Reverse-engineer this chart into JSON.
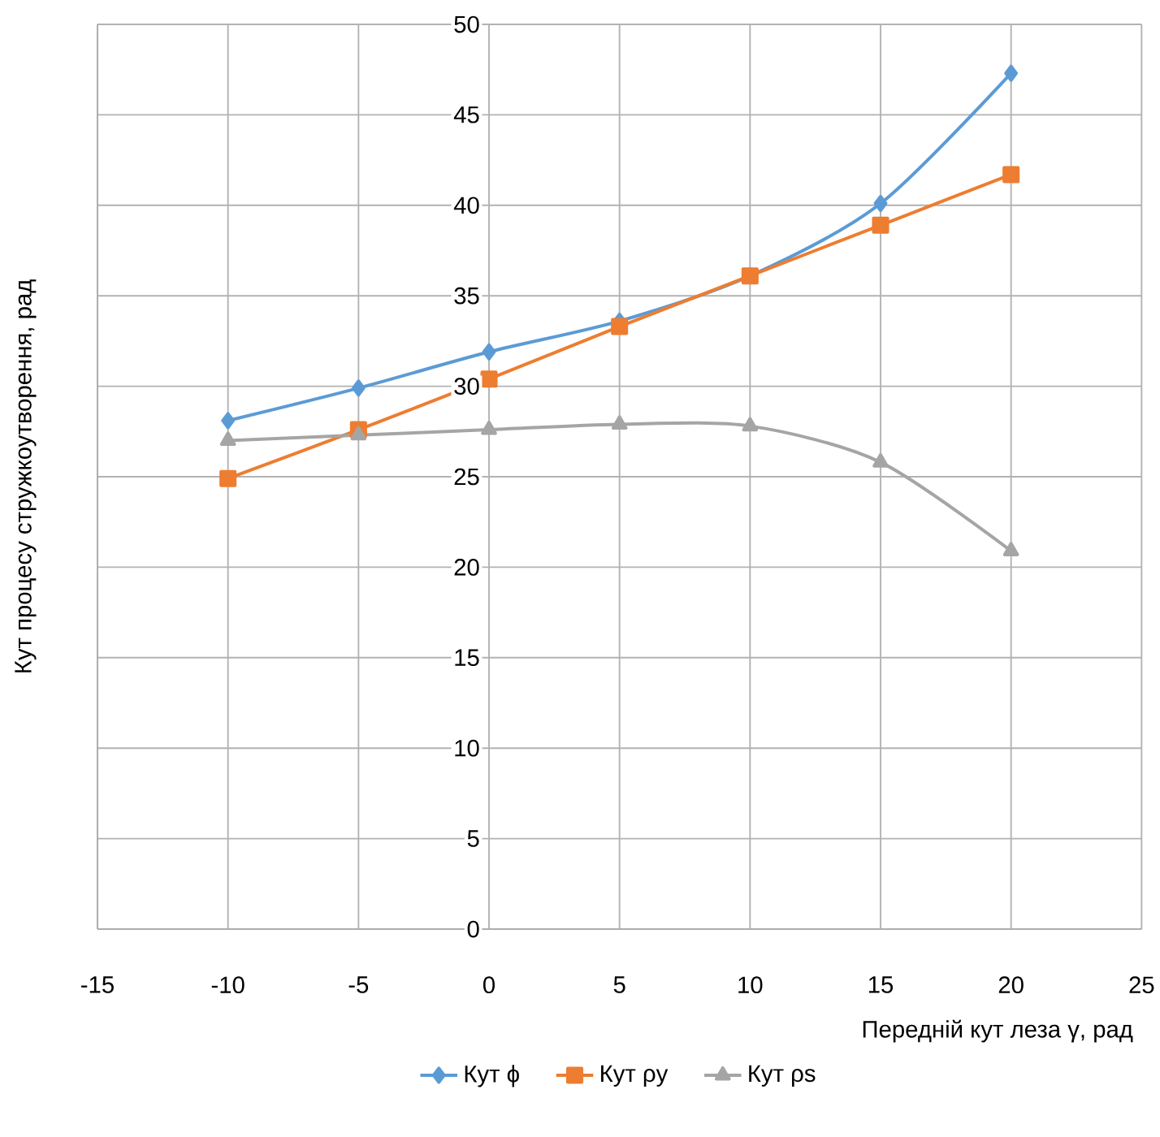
{
  "chart_data": {
    "type": "line",
    "xlabel": "Передній кут леза γ, рад",
    "ylabel": "Кут процесу стружкоутворення, рад",
    "x": [
      -10,
      -5,
      0,
      5,
      10,
      15,
      20
    ],
    "series": [
      {
        "name": "Кут ϕ",
        "color": "#5b9bd5",
        "marker": "diamond",
        "values": [
          28.1,
          29.9,
          31.9,
          33.6,
          36.1,
          40.1,
          47.3
        ]
      },
      {
        "name": "Кут ρу",
        "color": "#ed7d31",
        "marker": "square",
        "values": [
          24.9,
          27.6,
          30.4,
          33.3,
          36.1,
          38.9,
          41.7
        ]
      },
      {
        "name": "Кут ρs",
        "color": "#a5a5a5",
        "marker": "triangle",
        "values": [
          27.0,
          27.3,
          27.6,
          27.9,
          27.8,
          25.8,
          20.9
        ]
      }
    ],
    "xlim": [
      -15,
      25
    ],
    "xticks": [
      -15,
      -10,
      -5,
      0,
      5,
      10,
      15,
      20,
      25
    ],
    "ylim": [
      0,
      50
    ],
    "yticks": [
      0,
      5,
      10,
      15,
      20,
      25,
      30,
      35,
      40,
      45,
      50
    ],
    "grid": true,
    "legend": "bottom"
  }
}
